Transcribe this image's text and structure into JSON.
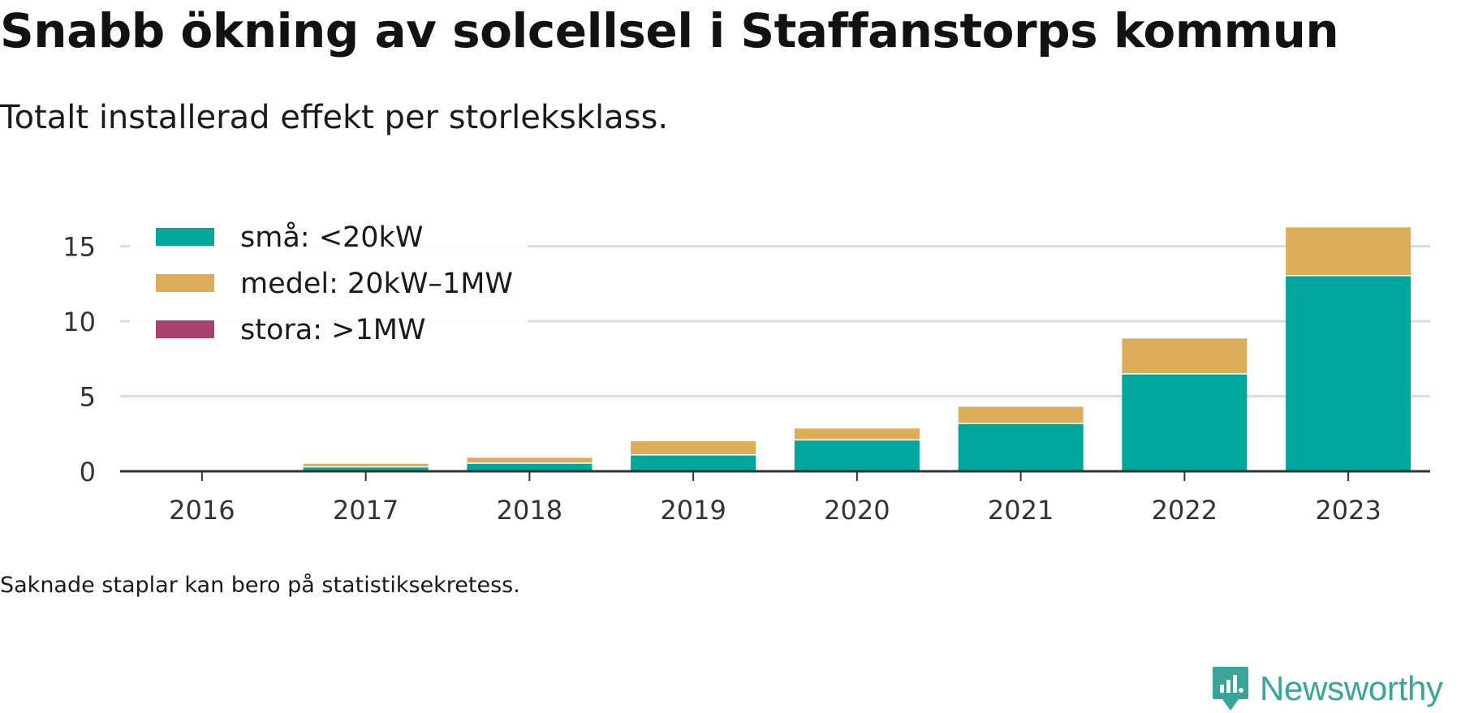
{
  "header": {
    "title": "Snabb ökning av solcellsel i Staffanstorps kommun",
    "subtitle": "Totalt installerad effekt per storleksklass."
  },
  "footer": {
    "note": "Saknade staplar kan bero på statistiksekretess.",
    "brand": "Newsworthy",
    "brand_icon": "newsworthy-logo-icon"
  },
  "chart_data": {
    "type": "bar",
    "stacked": true,
    "title": "Snabb ökning av solcellsel i Staffanstorps kommun",
    "subtitle": "Totalt installerad effekt per storleksklass.",
    "xlabel": "",
    "ylabel": "",
    "categories": [
      "2016",
      "2017",
      "2018",
      "2019",
      "2020",
      "2021",
      "2022",
      "2023"
    ],
    "series": [
      {
        "name": "små: <20kW",
        "color": "#00a59b",
        "values": [
          0.02,
          0.25,
          0.5,
          1.05,
          2.05,
          3.15,
          6.45,
          13.0
        ]
      },
      {
        "name": "medel: 20kW–1MW",
        "color": "#dbad5a",
        "values": [
          0.01,
          0.25,
          0.4,
          0.95,
          0.8,
          1.15,
          2.4,
          3.25
        ]
      },
      {
        "name": "stora: >1MW",
        "color": "#a8416b",
        "values": [
          0,
          0,
          0,
          0,
          0,
          0,
          0,
          0
        ]
      }
    ],
    "ylim": [
      0,
      17
    ],
    "yticks": [
      0,
      5,
      10,
      15
    ],
    "grid": true,
    "legend_position": "top-left"
  }
}
